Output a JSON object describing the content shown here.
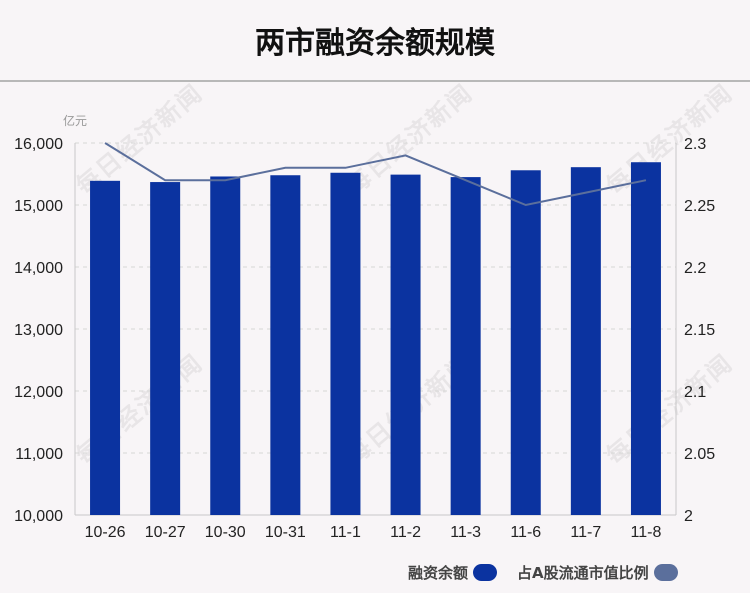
{
  "title": "两市融资余额规模",
  "unit_label": "亿元",
  "watermark": "每日经济新闻",
  "legend": [
    {
      "label": "融资余额",
      "color": "#0b33a0"
    },
    {
      "label": "占A股流通市值比例",
      "color": "#5b6f9c"
    }
  ],
  "chart_data": {
    "type": "bar",
    "title": "两市融资余额规模",
    "categories": [
      "10-26",
      "10-27",
      "10-30",
      "10-31",
      "11-1",
      "11-2",
      "11-3",
      "11-6",
      "11-7",
      "11-8"
    ],
    "series": [
      {
        "name": "融资余额",
        "type": "bar",
        "axis": "left",
        "color": "#0b33a0",
        "values": [
          15390,
          15370,
          15460,
          15480,
          15520,
          15490,
          15450,
          15560,
          15610,
          15690
        ]
      },
      {
        "name": "占A股流通市值比例",
        "type": "line",
        "axis": "right",
        "color": "#5b6f9c",
        "values": [
          2.3,
          2.27,
          2.27,
          2.28,
          2.28,
          2.29,
          2.27,
          2.25,
          2.26,
          2.27
        ]
      }
    ],
    "y_left": {
      "min": 10000,
      "max": 16000,
      "ticks": [
        "10,000",
        "11,000",
        "12,000",
        "13,000",
        "14,000",
        "15,000",
        "16,000"
      ]
    },
    "y_right": {
      "min": 2,
      "max": 2.3,
      "ticks": [
        "2",
        "2.05",
        "2.1",
        "2.15",
        "2.2",
        "2.25",
        "2.3"
      ]
    },
    "grid": true,
    "legend_position": "bottom-right"
  }
}
